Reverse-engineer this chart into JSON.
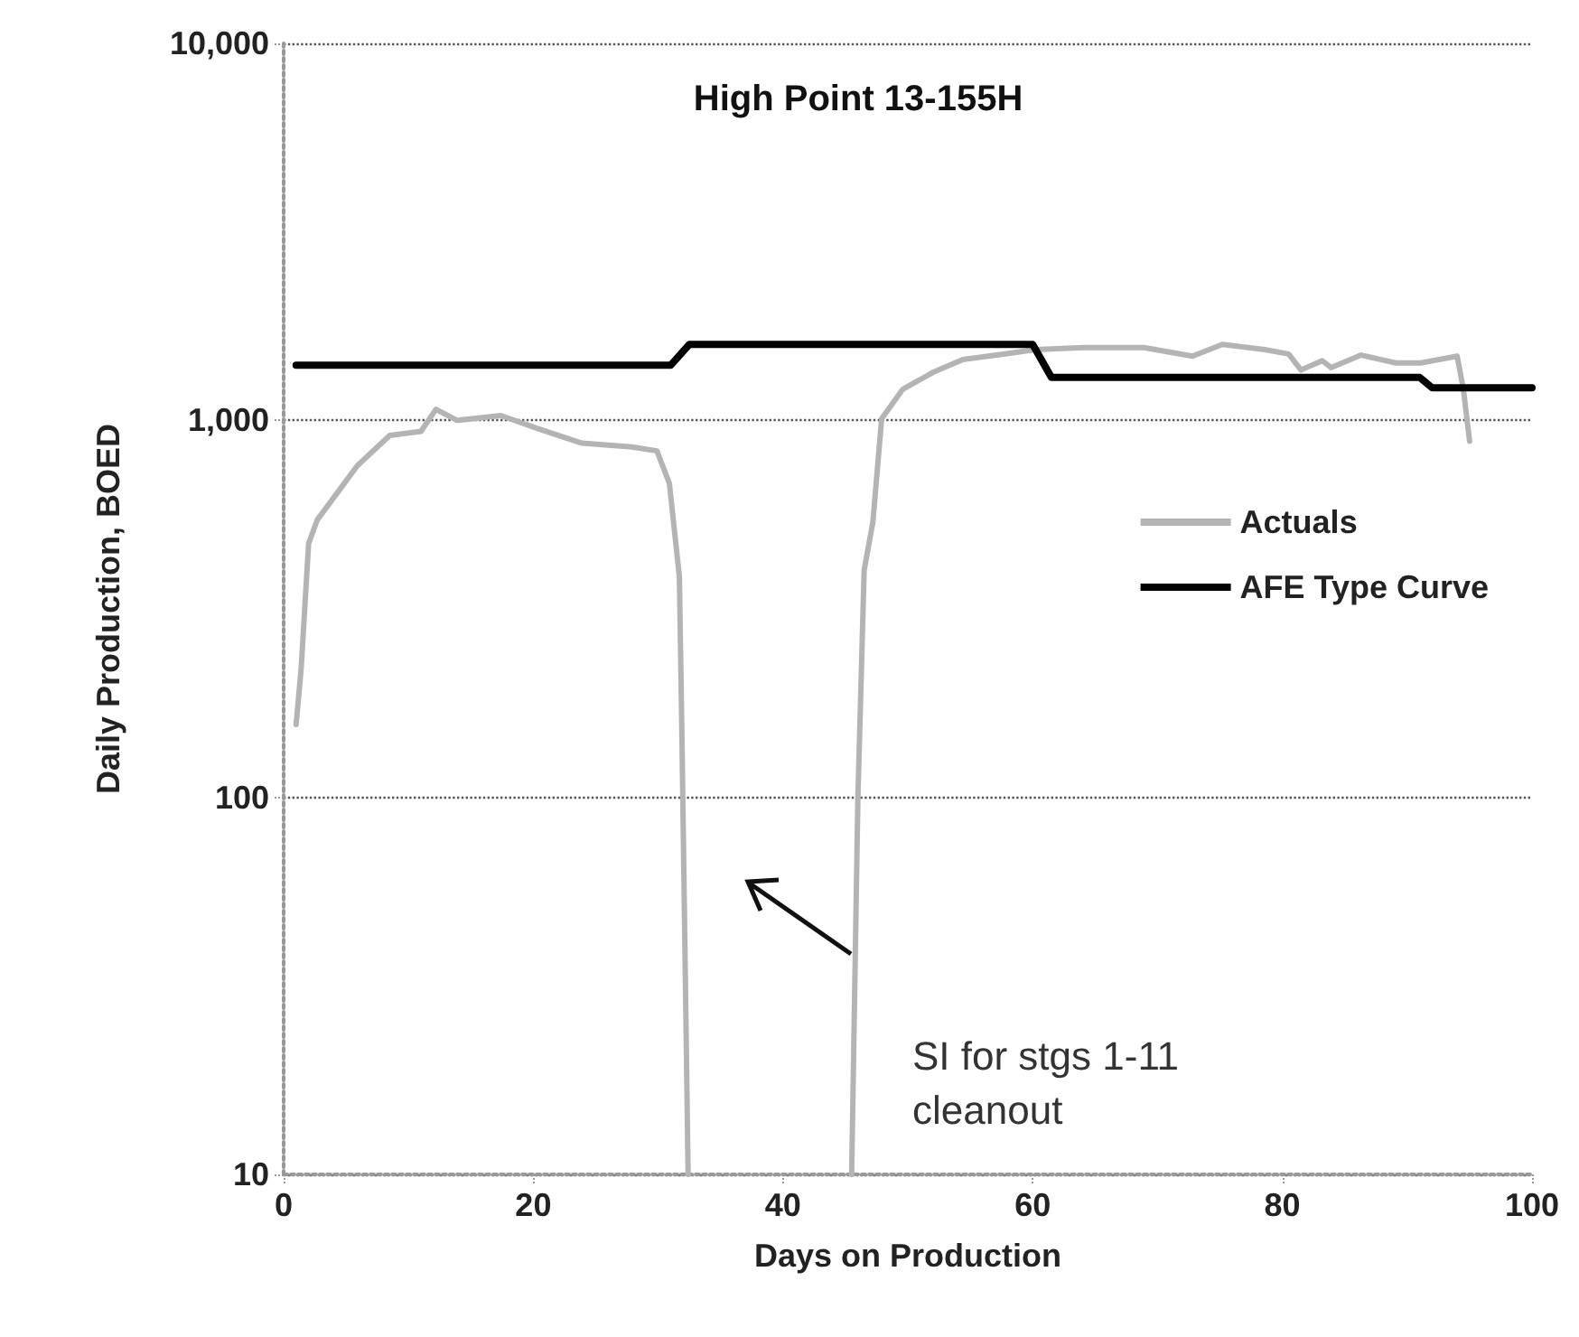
{
  "chart_data": {
    "type": "line",
    "title": "High Point 13-155H",
    "xlabel": "Days on Production",
    "ylabel": "Daily Production, BOED",
    "xlim": [
      0,
      100
    ],
    "xticks": [
      0,
      20,
      40,
      60,
      80,
      100
    ],
    "ylim": [
      10,
      10000
    ],
    "yticks": [
      {
        "value": 10,
        "label": "10"
      },
      {
        "value": 100,
        "label": "100"
      },
      {
        "value": 1000,
        "label": "1,000"
      },
      {
        "value": 10000,
        "label": "10,000"
      }
    ],
    "log": "y",
    "grid": "y",
    "legend": "right",
    "marker": "none",
    "series": [
      {
        "name": "Actuals",
        "color": "#b4b4b4",
        "x": [
          1,
          1.4,
          2,
          2.7,
          4,
          5.9,
          8.5,
          11,
          12.2,
          13.9,
          17.4,
          20.4,
          23.9,
          27.9,
          29.9,
          30.9,
          31.7,
          31.9,
          32.4,
          33,
          45.5,
          46,
          46.5,
          47.2,
          47.9,
          49.6,
          52,
          54.4,
          57.8,
          60.2,
          64.1,
          68.9,
          72.8,
          75.2,
          78.6,
          80.5,
          81.5,
          83.2,
          83.9,
          86.3,
          89.1,
          91.1,
          94,
          94.5,
          95
        ],
        "values": [
          156,
          219,
          471,
          545,
          623,
          758,
          912,
          935,
          1070,
          1000,
          1030,
          950,
          870,
          850,
          830,
          680,
          385,
          149,
          10,
          null,
          10,
          100,
          400,
          537,
          1010,
          1210,
          1340,
          1450,
          1500,
          1540,
          1560,
          1560,
          1480,
          1590,
          1540,
          1500,
          1360,
          1440,
          1380,
          1490,
          1420,
          1420,
          1480,
          1210,
          880
        ]
      },
      {
        "name": "AFE Type Curve",
        "color": "#000000",
        "x": [
          1,
          31,
          32.5,
          60,
          61.5,
          91,
          92,
          100
        ],
        "values": [
          1400,
          1400,
          1590,
          1590,
          1300,
          1300,
          1220,
          1220
        ]
      }
    ],
    "annotations": [
      "SI for stgs 1-11\ncleanout"
    ]
  }
}
